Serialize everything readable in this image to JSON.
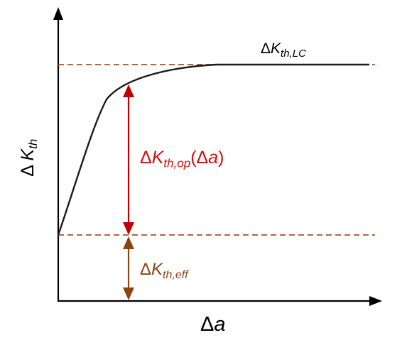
{
  "labels": {
    "y_axis": {
      "base": "Δ ",
      "var": "K",
      "sub": "th"
    },
    "x_axis": {
      "base": "Δ",
      "var": "a"
    },
    "lc": {
      "base": "Δ",
      "var": "K",
      "sub": "th,LC"
    },
    "op": {
      "base": "Δ",
      "var": "K",
      "sub": "th,op",
      "paren_open": "(Δ",
      "paren_var": "a",
      "paren_close": ")"
    },
    "eff": {
      "base": "Δ",
      "var": "K",
      "sub": "th,eff"
    }
  },
  "colors": {
    "axis": "#000000",
    "curve": "#1a1a1a",
    "dashed": "#a0522d",
    "op_arrow": "#c00000",
    "eff_arrow": "#8b4513",
    "lc_text": "#000000",
    "op_text": "#d01010",
    "eff_text": "#8b4513"
  }
}
